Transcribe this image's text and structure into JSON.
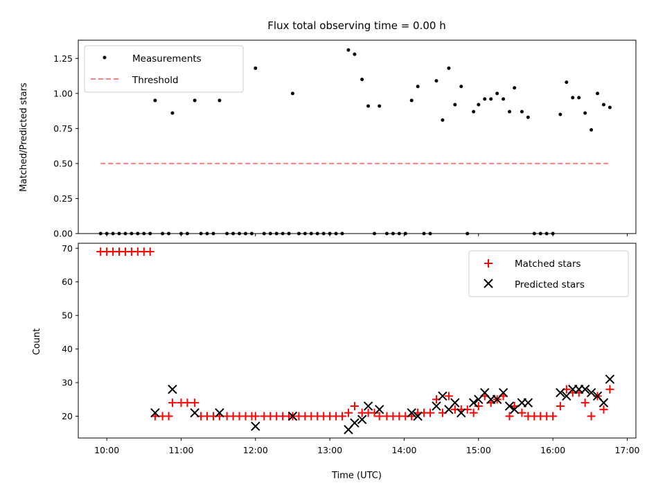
{
  "chart_data": [
    {
      "type": "scatter",
      "title": "Flux total observing time = 0.00 h",
      "xlabel": "",
      "ylabel": "Matched/Predicted stars",
      "xlim": [
        "09:37",
        "17:07"
      ],
      "ylim": [
        0,
        1.38
      ],
      "yticks": [
        "0.00",
        "0.25",
        "0.50",
        "0.75",
        "1.00",
        "1.25"
      ],
      "ytick_values": [
        0,
        0.25,
        0.5,
        0.75,
        1.0,
        1.25
      ],
      "legend": "top-left",
      "series": [
        {
          "name": "Measurements",
          "marker": "dot",
          "color": "#000000",
          "points": [
            [
              "09:55",
              0
            ],
            [
              "10:00",
              0
            ],
            [
              "10:05",
              0
            ],
            [
              "10:10",
              0
            ],
            [
              "10:15",
              0
            ],
            [
              "10:20",
              0
            ],
            [
              "10:25",
              0
            ],
            [
              "10:30",
              0
            ],
            [
              "10:35",
              0
            ],
            [
              "10:39",
              0.95
            ],
            [
              "10:45",
              0
            ],
            [
              "10:50",
              0
            ],
            [
              "10:53",
              0.86
            ],
            [
              "11:00",
              0
            ],
            [
              "11:05",
              0
            ],
            [
              "11:11",
              0.95
            ],
            [
              "11:16",
              0
            ],
            [
              "11:21",
              0
            ],
            [
              "11:26",
              0
            ],
            [
              "11:31",
              0.95
            ],
            [
              "11:37",
              0
            ],
            [
              "11:42",
              0
            ],
            [
              "11:47",
              0
            ],
            [
              "11:52",
              0
            ],
            [
              "11:57",
              0
            ],
            [
              "12:00",
              1.18
            ],
            [
              "12:07",
              0
            ],
            [
              "12:12",
              0
            ],
            [
              "12:17",
              0
            ],
            [
              "12:22",
              0
            ],
            [
              "12:27",
              0
            ],
            [
              "12:30",
              1.0
            ],
            [
              "12:35",
              0
            ],
            [
              "12:40",
              0
            ],
            [
              "12:45",
              0
            ],
            [
              "12:50",
              0
            ],
            [
              "12:55",
              0
            ],
            [
              "13:00",
              0
            ],
            [
              "13:05",
              0
            ],
            [
              "13:10",
              0
            ],
            [
              "13:15",
              1.31
            ],
            [
              "13:20",
              1.28
            ],
            [
              "13:26",
              1.1
            ],
            [
              "13:31",
              0.91
            ],
            [
              "13:36",
              0
            ],
            [
              "13:40",
              0.91
            ],
            [
              "13:46",
              0
            ],
            [
              "13:51",
              0
            ],
            [
              "13:56",
              0
            ],
            [
              "14:01",
              0
            ],
            [
              "14:06",
              0.95
            ],
            [
              "14:11",
              1.05
            ],
            [
              "14:16",
              0
            ],
            [
              "14:21",
              0
            ],
            [
              "14:26",
              1.09
            ],
            [
              "14:31",
              0.81
            ],
            [
              "14:36",
              1.18
            ],
            [
              "14:41",
              0.92
            ],
            [
              "14:46",
              1.05
            ],
            [
              "14:51",
              0
            ],
            [
              "14:56",
              0.87
            ],
            [
              "15:00",
              0.92
            ],
            [
              "15:05",
              0.96
            ],
            [
              "15:10",
              0.96
            ],
            [
              "15:15",
              1.0
            ],
            [
              "15:20",
              0.96
            ],
            [
              "15:25",
              0.87
            ],
            [
              "15:29",
              1.04
            ],
            [
              "15:35",
              0.87
            ],
            [
              "15:40",
              0.83
            ],
            [
              "15:45",
              0
            ],
            [
              "15:50",
              0
            ],
            [
              "15:55",
              0
            ],
            [
              "16:00",
              0
            ],
            [
              "16:06",
              0.85
            ],
            [
              "16:11",
              1.08
            ],
            [
              "16:16",
              0.97
            ],
            [
              "16:21",
              0.97
            ],
            [
              "16:26",
              0.86
            ],
            [
              "16:31",
              0.74
            ],
            [
              "16:36",
              1.0
            ],
            [
              "16:41",
              0.92
            ],
            [
              "16:46",
              0.9
            ]
          ]
        },
        {
          "name": "Threshold",
          "marker": "dashed-line",
          "color": "#ff7f7f",
          "points": [
            [
              "09:55",
              0.5
            ],
            [
              "16:46",
              0.5
            ]
          ]
        }
      ]
    },
    {
      "type": "scatter",
      "title": "",
      "xlabel": "Time (UTC)",
      "ylabel": "Count",
      "xlim": [
        "09:37",
        "17:07"
      ],
      "ylim": [
        13.5,
        71.5
      ],
      "xticks": [
        "10:00",
        "11:00",
        "12:00",
        "13:00",
        "14:00",
        "15:00",
        "16:00",
        "17:00"
      ],
      "yticks": [
        "20",
        "30",
        "40",
        "50",
        "60",
        "70"
      ],
      "ytick_values": [
        20,
        30,
        40,
        50,
        60,
        70
      ],
      "legend": "top-right",
      "series": [
        {
          "name": "Matched stars",
          "marker": "plus",
          "color": "#ff0000",
          "points": [
            [
              "09:55",
              69
            ],
            [
              "10:00",
              69
            ],
            [
              "10:05",
              69
            ],
            [
              "10:10",
              69
            ],
            [
              "10:15",
              69
            ],
            [
              "10:20",
              69
            ],
            [
              "10:25",
              69
            ],
            [
              "10:30",
              69
            ],
            [
              "10:35",
              69
            ],
            [
              "10:39",
              20
            ],
            [
              "10:45",
              20
            ],
            [
              "10:50",
              20
            ],
            [
              "10:53",
              24
            ],
            [
              "11:00",
              24
            ],
            [
              "11:05",
              24
            ],
            [
              "11:11",
              24
            ],
            [
              "11:16",
              20
            ],
            [
              "11:21",
              20
            ],
            [
              "11:26",
              20
            ],
            [
              "11:31",
              20
            ],
            [
              "11:37",
              20
            ],
            [
              "11:42",
              20
            ],
            [
              "11:47",
              20
            ],
            [
              "11:52",
              20
            ],
            [
              "11:57",
              20
            ],
            [
              "12:00",
              20
            ],
            [
              "12:07",
              20
            ],
            [
              "12:12",
              20
            ],
            [
              "12:17",
              20
            ],
            [
              "12:22",
              20
            ],
            [
              "12:27",
              20
            ],
            [
              "12:30",
              20
            ],
            [
              "12:35",
              20
            ],
            [
              "12:40",
              20
            ],
            [
              "12:45",
              20
            ],
            [
              "12:50",
              20
            ],
            [
              "12:55",
              20
            ],
            [
              "13:00",
              20
            ],
            [
              "13:05",
              20
            ],
            [
              "13:10",
              20
            ],
            [
              "13:15",
              21
            ],
            [
              "13:20",
              23
            ],
            [
              "13:26",
              21
            ],
            [
              "13:31",
              21
            ],
            [
              "13:36",
              21
            ],
            [
              "13:40",
              20
            ],
            [
              "13:46",
              20
            ],
            [
              "13:51",
              20
            ],
            [
              "13:56",
              20
            ],
            [
              "14:01",
              20
            ],
            [
              "14:06",
              20
            ],
            [
              "14:11",
              21
            ],
            [
              "14:16",
              21
            ],
            [
              "14:21",
              21
            ],
            [
              "14:26",
              25
            ],
            [
              "14:31",
              21
            ],
            [
              "14:36",
              26
            ],
            [
              "14:41",
              22
            ],
            [
              "14:46",
              22
            ],
            [
              "14:51",
              22
            ],
            [
              "14:56",
              21
            ],
            [
              "15:00",
              23
            ],
            [
              "15:05",
              26
            ],
            [
              "15:10",
              24
            ],
            [
              "15:15",
              25
            ],
            [
              "15:20",
              26
            ],
            [
              "15:25",
              20
            ],
            [
              "15:29",
              23
            ],
            [
              "15:35",
              21
            ],
            [
              "15:40",
              20
            ],
            [
              "15:45",
              20
            ],
            [
              "15:50",
              20
            ],
            [
              "15:55",
              20
            ],
            [
              "16:00",
              20
            ],
            [
              "16:06",
              23
            ],
            [
              "16:11",
              28
            ],
            [
              "16:16",
              27
            ],
            [
              "16:21",
              27
            ],
            [
              "16:26",
              24
            ],
            [
              "16:31",
              20
            ],
            [
              "16:36",
              26
            ],
            [
              "16:41",
              22
            ],
            [
              "16:46",
              28
            ]
          ]
        },
        {
          "name": "Predicted stars",
          "marker": "x",
          "color": "#000000",
          "points": [
            [
              "10:39",
              21
            ],
            [
              "10:53",
              28
            ],
            [
              "11:11",
              21
            ],
            [
              "11:31",
              21
            ],
            [
              "12:00",
              17
            ],
            [
              "12:30",
              20
            ],
            [
              "13:15",
              16
            ],
            [
              "13:20",
              18
            ],
            [
              "13:26",
              19
            ],
            [
              "13:31",
              23
            ],
            [
              "13:40",
              22
            ],
            [
              "14:06",
              21
            ],
            [
              "14:11",
              20
            ],
            [
              "14:26",
              23
            ],
            [
              "14:31",
              26
            ],
            [
              "14:36",
              22
            ],
            [
              "14:41",
              24
            ],
            [
              "14:46",
              21
            ],
            [
              "14:56",
              24
            ],
            [
              "15:00",
              25
            ],
            [
              "15:05",
              27
            ],
            [
              "15:10",
              25
            ],
            [
              "15:15",
              25
            ],
            [
              "15:20",
              27
            ],
            [
              "15:25",
              23
            ],
            [
              "15:29",
              22
            ],
            [
              "15:35",
              24
            ],
            [
              "15:40",
              24
            ],
            [
              "16:06",
              27
            ],
            [
              "16:11",
              26
            ],
            [
              "16:16",
              28
            ],
            [
              "16:21",
              28
            ],
            [
              "16:26",
              28
            ],
            [
              "16:31",
              27
            ],
            [
              "16:36",
              26
            ],
            [
              "16:41",
              24
            ],
            [
              "16:46",
              31
            ]
          ]
        }
      ]
    }
  ]
}
